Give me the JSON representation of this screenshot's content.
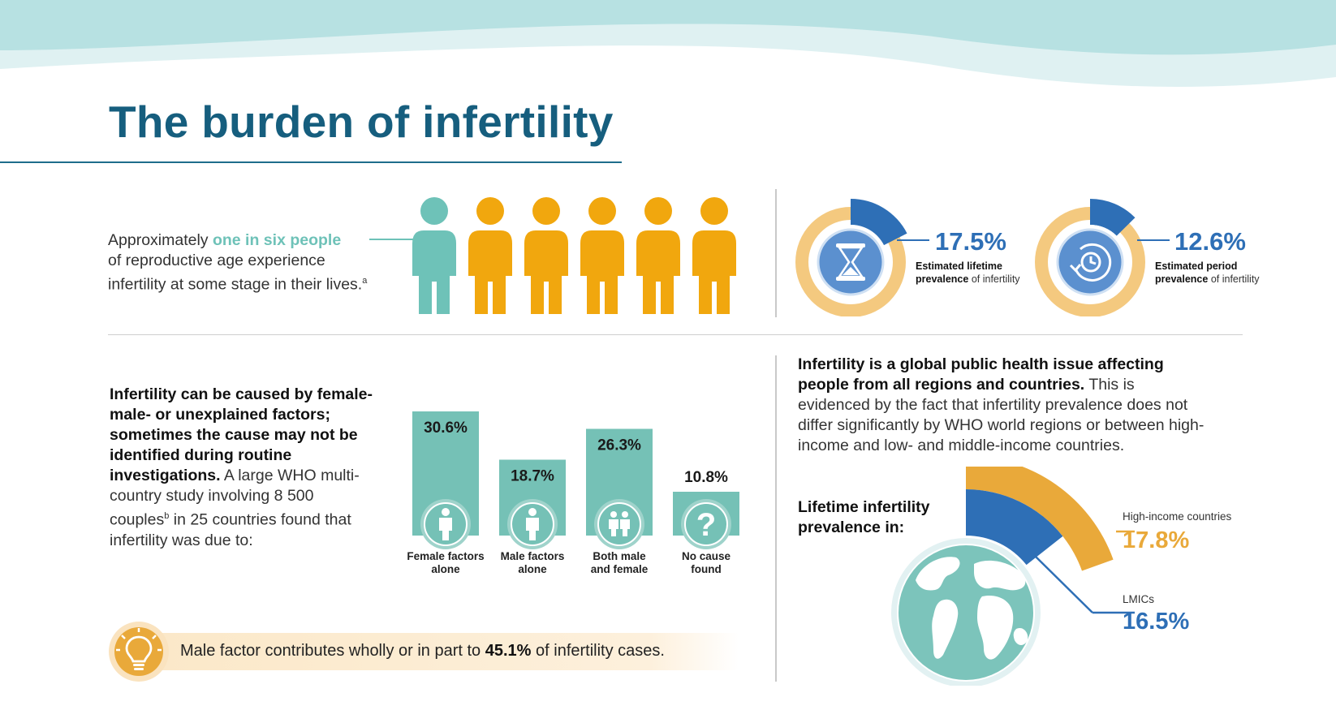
{
  "colors": {
    "title": "#165e7e",
    "teal": "#6ec2b8",
    "orange": "#f1a70e",
    "blue": "#2e6fb6",
    "sand": "#f1c37c",
    "bar": "#75c1b6",
    "callout": "#e9a93a"
  },
  "page": {
    "title": "The burden of infertility"
  },
  "one_in_six": {
    "prefix": "Approximately ",
    "highlight": "one in six people",
    "line2": "of reproductive age experience",
    "line3": "infertility at some stage in their lives.",
    "footnote": "a",
    "people_total": 6,
    "people_highlighted": 1
  },
  "prevalence": [
    {
      "value": "17.5%",
      "percent": 17.5,
      "caption_bold": "Estimated lifetime prevalence",
      "caption_rest": "of infertility",
      "icon": "hourglass-icon"
    },
    {
      "value": "12.6%",
      "percent": 12.6,
      "caption_bold": "Estimated period prevalence",
      "caption_rest": "of infertility",
      "icon": "clock-icon"
    }
  ],
  "causes": {
    "text_bold": "Infertility can be caused by female- male- or unexplained factors; sometimes the cause may not be identified during routine investigations.",
    "text_rest_1": "A large WHO multi-country study involving 8 500 couples",
    "footnote": "b",
    "text_rest_2": "in 25 countries found that infertility was due to:"
  },
  "chart_data": {
    "type": "bar",
    "categories": [
      "Female factors alone",
      "Male factors alone",
      "Both male and female",
      "No cause found"
    ],
    "values": [
      30.6,
      18.7,
      26.3,
      10.8
    ],
    "labels": [
      "30.6%",
      "18.7%",
      "26.3%",
      "10.8%"
    ],
    "category_lines": [
      [
        "Female factors",
        "alone"
      ],
      [
        "Male factors",
        "alone"
      ],
      [
        "Both male",
        "and female"
      ],
      [
        "No cause",
        "found"
      ]
    ],
    "icons": [
      "female-icon",
      "male-icon",
      "couple-icon",
      "question-icon"
    ]
  },
  "callout": {
    "prefix": "Male factor contributes wholly or in part to ",
    "value": "45.1%",
    "suffix": " of infertility cases.",
    "icon": "lightbulb-icon"
  },
  "global": {
    "text_bold": "Infertility is a global public health issue affecting people from all regions and countries.",
    "text_rest": "This is evidenced by the fact that infertility prevalence does not differ significantly by WHO world regions or between high-income and low- and middle-income countries.",
    "lifetime_label": "Lifetime infertility prevalence in:",
    "regions": [
      {
        "name": "High-income countries",
        "value": "17.8%",
        "percent": 17.8,
        "color": "#e9a93a"
      },
      {
        "name": "LMICs",
        "value": "16.5%",
        "percent": 16.5,
        "color": "#2e6fb6"
      }
    ],
    "icon": "globe-icon"
  }
}
